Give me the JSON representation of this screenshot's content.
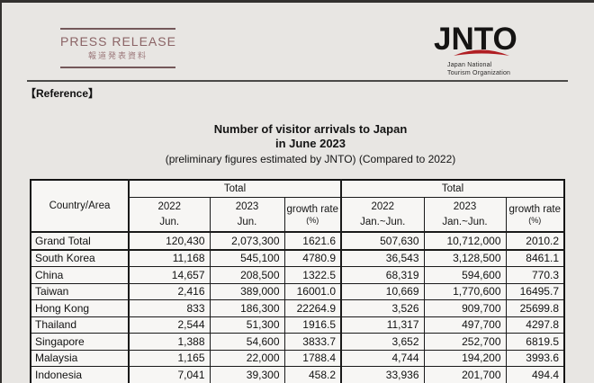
{
  "page": {
    "background_color": "#e8e6e3",
    "edge_color": "#33312f",
    "accent_red": "#b01e23",
    "stamp_color": "#8b6466"
  },
  "header": {
    "press_release": {
      "title": "PRESS RELEASE",
      "subtitle_jp": "報道発表資料"
    },
    "logo": {
      "text": "JNTO",
      "org_line1": "Japan National",
      "org_line2": "Tourism Organization",
      "swoosh_color": "#b01e23"
    },
    "reference_label": "【Reference】"
  },
  "title": {
    "line1": "Number of visitor arrivals to Japan",
    "line2": "in June 2023",
    "line3": "(preliminary figures estimated by JNTO) (Compared to 2022)"
  },
  "table": {
    "header": {
      "country_area": "Country/Area",
      "group1_title": "Total",
      "group2_title": "Total",
      "columns": [
        {
          "year": "2022",
          "period": "Jun."
        },
        {
          "year": "2023",
          "period": "Jun."
        },
        {
          "label": "growth rate",
          "unit": "(%)"
        },
        {
          "year": "2022",
          "period": "Jan.~Jun."
        },
        {
          "year": "2023",
          "period": "Jan.~Jun."
        },
        {
          "label": "growth rate",
          "unit": "(%)"
        }
      ]
    },
    "rows": [
      {
        "country": "Grand Total",
        "values": [
          "120,430",
          "2,073,300",
          "1621.6",
          "507,630",
          "10,712,000",
          "2010.2"
        ],
        "emphasis": true
      },
      {
        "country": "South Korea",
        "values": [
          "11,168",
          "545,100",
          "4780.9",
          "36,543",
          "3,128,500",
          "8461.1"
        ],
        "emphasis": false
      },
      {
        "country": "China",
        "values": [
          "14,657",
          "208,500",
          "1322.5",
          "68,319",
          "594,600",
          "770.3"
        ],
        "emphasis": false
      },
      {
        "country": "Taiwan",
        "values": [
          "2,416",
          "389,000",
          "16001.0",
          "10,669",
          "1,770,600",
          "16495.7"
        ],
        "emphasis": false
      },
      {
        "country": "Hong Kong",
        "values": [
          "833",
          "186,300",
          "22264.9",
          "3,526",
          "909,700",
          "25699.8"
        ],
        "emphasis": false
      },
      {
        "country": "Thailand",
        "values": [
          "2,544",
          "51,300",
          "1916.5",
          "11,317",
          "497,700",
          "4297.8"
        ],
        "emphasis": false
      },
      {
        "country": "Singapore",
        "values": [
          "1,388",
          "54,600",
          "3833.7",
          "3,652",
          "252,700",
          "6819.5"
        ],
        "emphasis": false
      },
      {
        "country": "Malaysia",
        "values": [
          "1,165",
          "22,000",
          "1788.4",
          "4,744",
          "194,200",
          "3993.6"
        ],
        "emphasis": false
      },
      {
        "country": "Indonesia",
        "values": [
          "7,041",
          "39,300",
          "458.2",
          "33,936",
          "201,700",
          "494.4"
        ],
        "emphasis": false
      }
    ]
  }
}
